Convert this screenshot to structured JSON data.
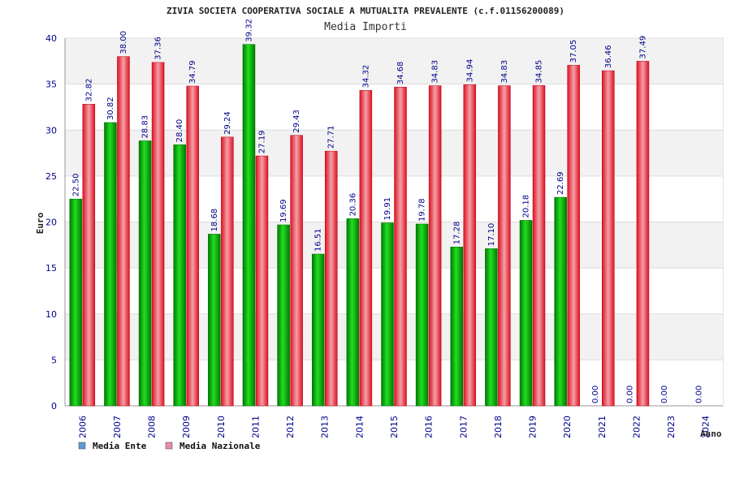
{
  "chart_data": {
    "type": "bar",
    "title": "ZIVIA SOCIETA COOPERATIVA SOCIALE A MUTUALITA PREVALENTE (c.f.01156200089)",
    "subtitle": "Media Importi",
    "xlabel": "Anno",
    "ylabel": "Euro",
    "ylim": [
      0,
      40
    ],
    "yticks": [
      0,
      5,
      10,
      15,
      20,
      25,
      30,
      35,
      40
    ],
    "grid": true,
    "legend_position": "bottom-left",
    "categories": [
      "2006",
      "2007",
      "2008",
      "2009",
      "2010",
      "2011",
      "2012",
      "2013",
      "2014",
      "2015",
      "2016",
      "2017",
      "2018",
      "2019",
      "2020",
      "2021",
      "2022",
      "2023",
      "2024"
    ],
    "series": [
      {
        "name": "Media Ente",
        "color": "#00aa00",
        "legend_color": "#5b9bd5",
        "values": [
          22.5,
          30.82,
          28.83,
          28.4,
          18.68,
          39.32,
          19.69,
          16.51,
          20.36,
          19.91,
          19.78,
          17.28,
          17.1,
          20.18,
          22.69,
          0.0,
          0.0,
          0.0,
          0.0
        ],
        "labels": [
          "22.50",
          "30.82",
          "28.83",
          "28.40",
          "18.68",
          "39.32",
          "19.69",
          "16.51",
          "20.36",
          "19.91",
          "19.78",
          "17.28",
          "17.10",
          "20.18",
          "22.69",
          "0.00",
          "0.00",
          "0.00",
          "0.00"
        ]
      },
      {
        "name": "Media Nazionale",
        "color": "#ee2233",
        "legend_color": "#e88ab0",
        "values": [
          32.82,
          38.0,
          37.36,
          34.79,
          29.24,
          27.19,
          29.43,
          27.71,
          34.32,
          34.68,
          34.83,
          34.94,
          34.83,
          34.85,
          37.05,
          36.46,
          37.49,
          null,
          null
        ],
        "labels": [
          "32.82",
          "38.00",
          "37.36",
          "34.79",
          "29.24",
          "27.19",
          "29.43",
          "27.71",
          "34.32",
          "34.68",
          "34.83",
          "34.94",
          "34.83",
          "34.85",
          "37.05",
          "36.46",
          "37.49",
          "",
          ""
        ]
      }
    ]
  }
}
